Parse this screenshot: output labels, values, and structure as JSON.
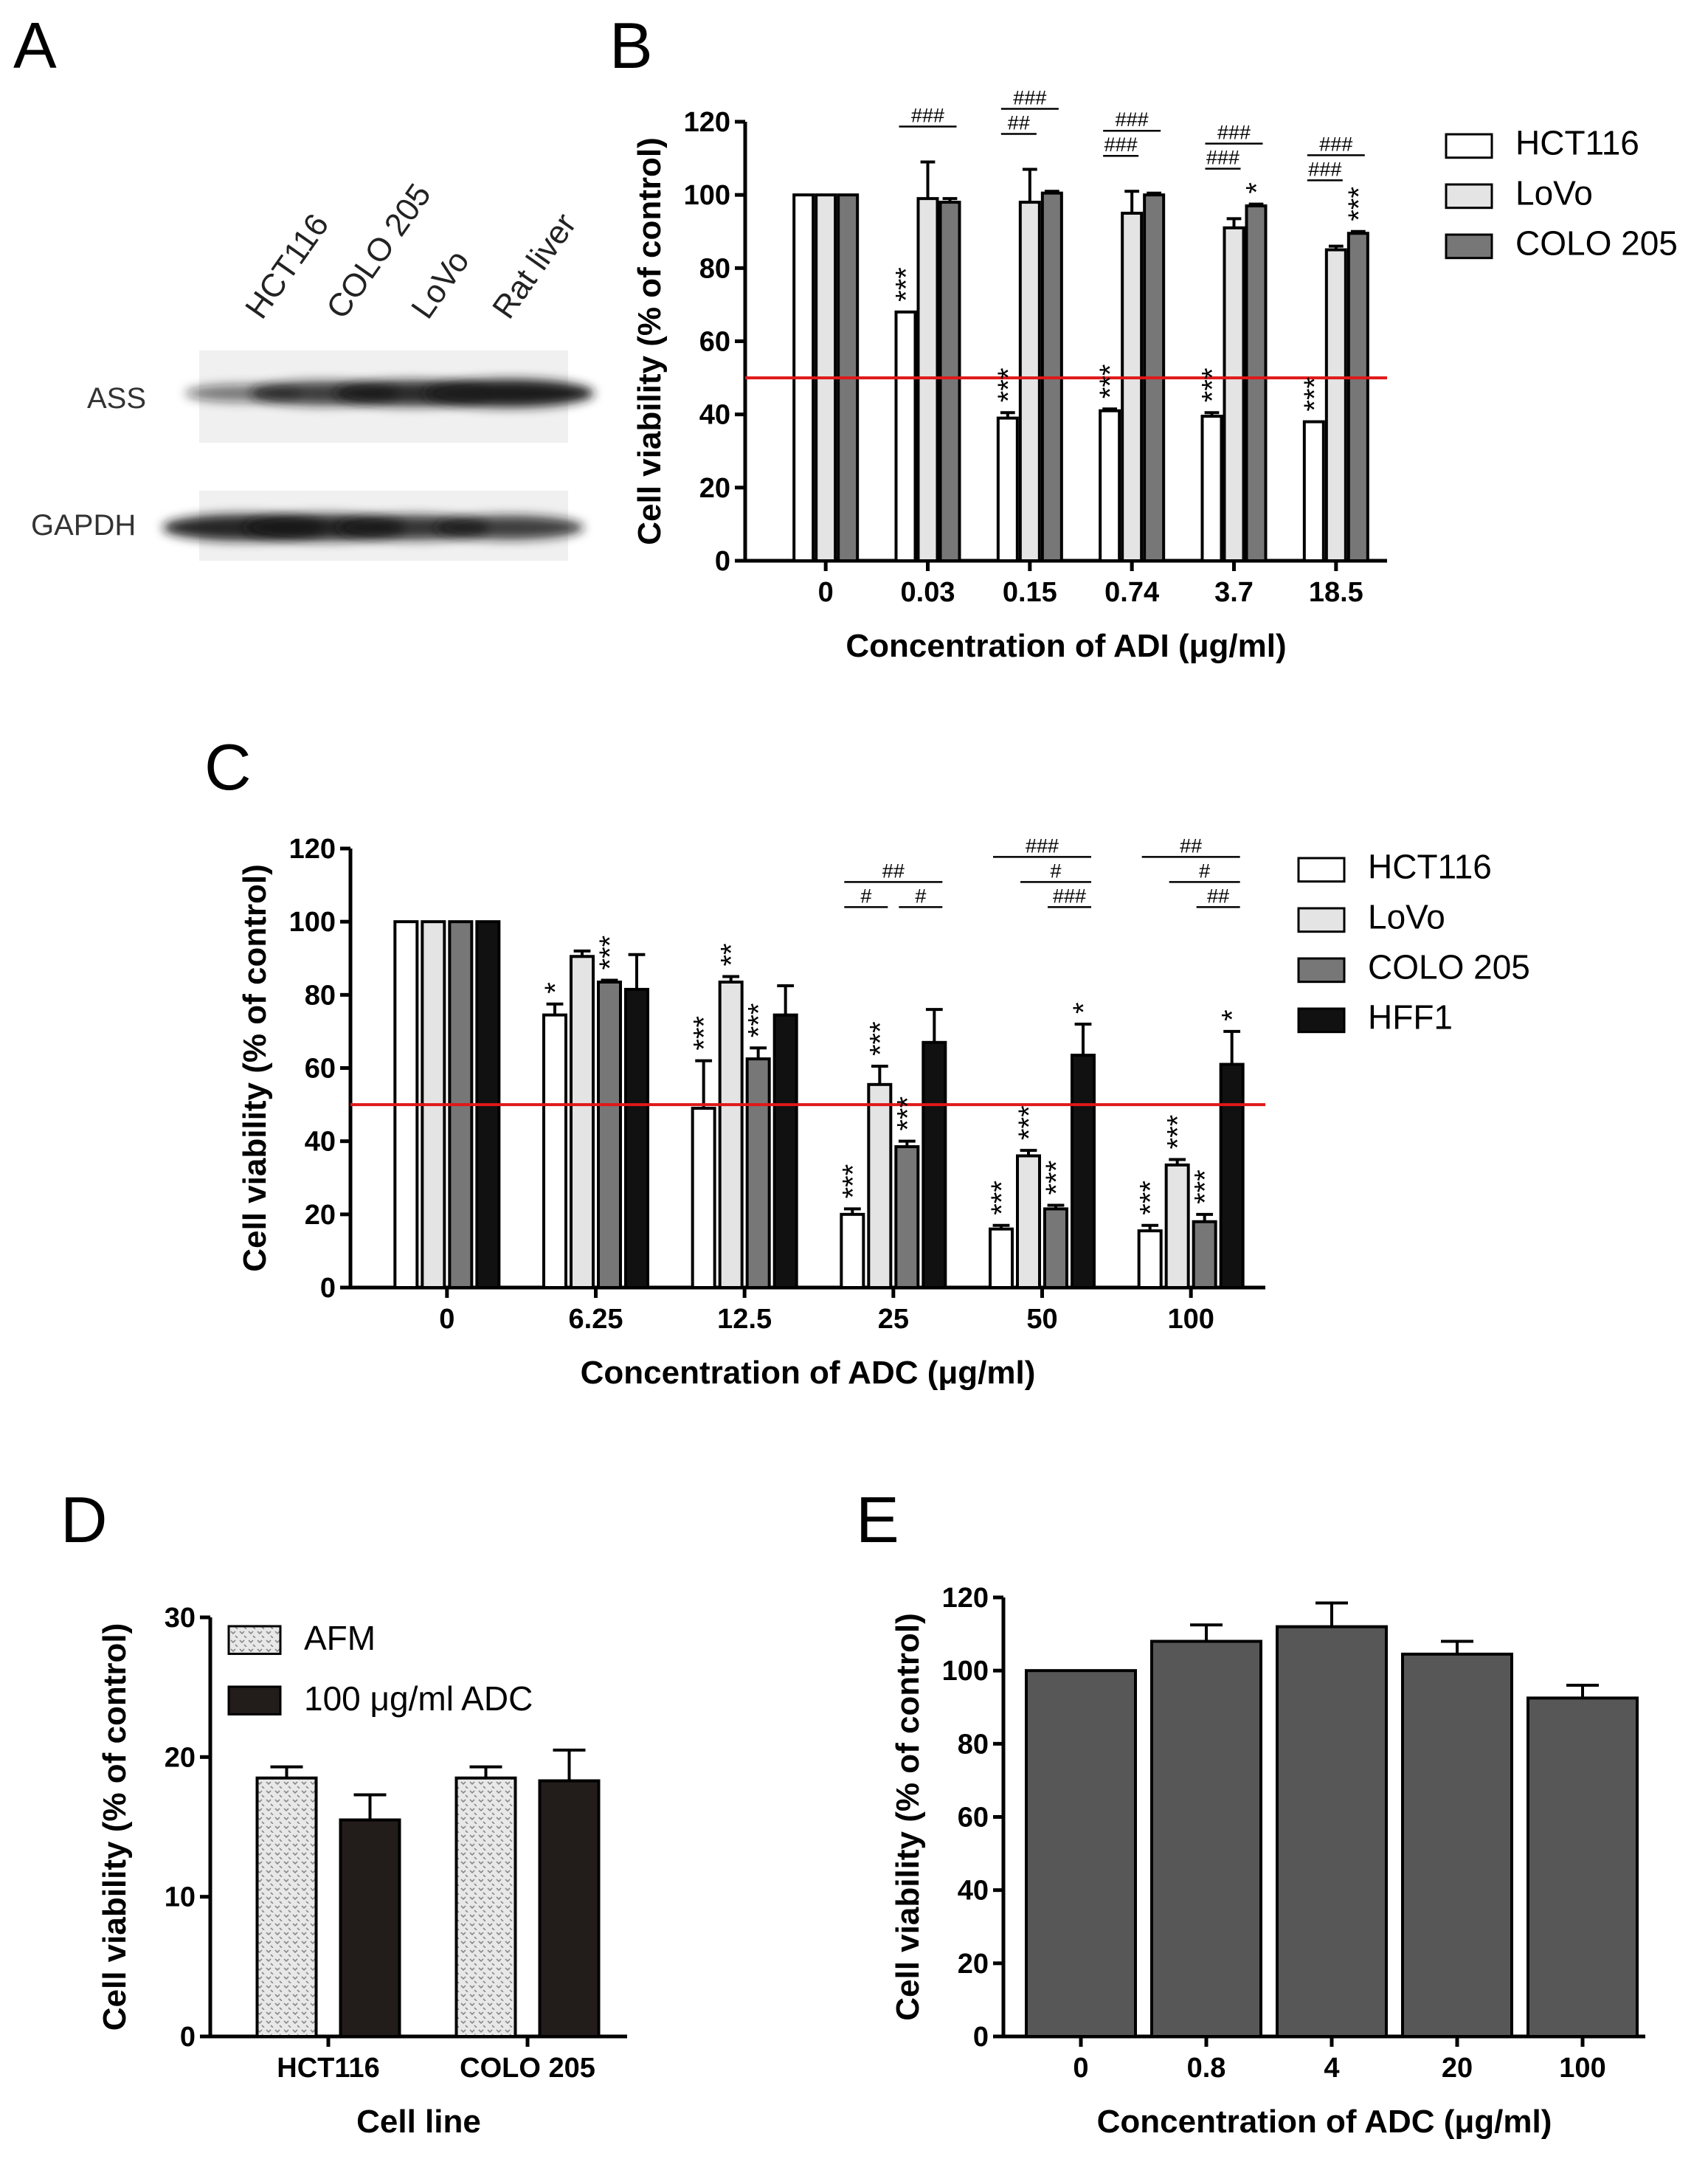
{
  "panels": [
    {
      "letter": "A"
    },
    {
      "letter": "B"
    },
    {
      "letter": "C"
    },
    {
      "letter": "D"
    },
    {
      "letter": "E"
    }
  ],
  "western_blot": {
    "lanes": [
      "HCT116",
      "COLO 205",
      "LoVo",
      "Rat liver"
    ],
    "rows": [
      {
        "label": "ASS",
        "intensities": [
          0.35,
          0.75,
          0.85,
          1.0
        ]
      },
      {
        "label": "GAPDH",
        "intensities": [
          0.9,
          0.9,
          0.8,
          0.75
        ]
      }
    ]
  },
  "chart_data": [
    {
      "id": "B",
      "type": "bar",
      "xlabel": "Concentration of ADI (μg/ml)",
      "ylabel": "Cell viability (% of control)",
      "ylim": [
        0,
        120
      ],
      "yticks": [
        "0",
        "20",
        "40",
        "60",
        "80",
        "100",
        "120"
      ],
      "categories": [
        "0",
        "0.03",
        "0.15",
        "0.74",
        "3.7",
        "18.5"
      ],
      "reference_line": 50,
      "legend_position": "right",
      "series": [
        {
          "name": "HCT116",
          "color": "#ffffff",
          "values": [
            100,
            68,
            39,
            41,
            39.5,
            38
          ],
          "errors": [
            0,
            0,
            1.5,
            0.5,
            1,
            0
          ]
        },
        {
          "name": "LoVo",
          "color": "#e4e4e4",
          "values": [
            100,
            99,
            98,
            95,
            91,
            85
          ],
          "errors": [
            0,
            10,
            9,
            6,
            2.5,
            1
          ]
        },
        {
          "name": "COLO 205",
          "color": "#777777",
          "values": [
            100,
            98,
            100.5,
            100,
            97,
            89.5
          ],
          "errors": [
            0,
            1,
            0.5,
            0.5,
            0.5,
            0.5
          ]
        }
      ],
      "annotations": [
        {
          "category": 1,
          "series": 0,
          "text": "***"
        },
        {
          "category": 2,
          "series": 0,
          "text": "***"
        },
        {
          "category": 3,
          "series": 0,
          "text": "***"
        },
        {
          "category": 4,
          "series": 0,
          "text": "***"
        },
        {
          "category": 5,
          "series": 0,
          "text": "***"
        },
        {
          "category": 4,
          "series": 2,
          "text": "*"
        },
        {
          "category": 5,
          "series": 2,
          "text": "***"
        }
      ],
      "brackets": [
        {
          "category": 1,
          "from": 0,
          "to": 2,
          "level": 0,
          "text": "###"
        },
        {
          "category": 2,
          "from": 0,
          "to": 1,
          "level": 0,
          "text": "##"
        },
        {
          "category": 2,
          "from": 0,
          "to": 2,
          "level": 1,
          "text": "###"
        },
        {
          "category": 3,
          "from": 0,
          "to": 1,
          "level": 0,
          "text": "###"
        },
        {
          "category": 3,
          "from": 0,
          "to": 2,
          "level": 1,
          "text": "###"
        },
        {
          "category": 4,
          "from": 0,
          "to": 1,
          "level": 0,
          "text": "###"
        },
        {
          "category": 4,
          "from": 0,
          "to": 2,
          "level": 1,
          "text": "###"
        },
        {
          "category": 5,
          "from": 0,
          "to": 1,
          "level": 0,
          "text": "###"
        },
        {
          "category": 5,
          "from": 0,
          "to": 2,
          "level": 1,
          "text": "###"
        }
      ]
    },
    {
      "id": "C",
      "type": "bar",
      "xlabel": "Concentration of ADC (μg/ml)",
      "ylabel": "Cell viability (% of control)",
      "ylim": [
        0,
        120
      ],
      "yticks": [
        "0",
        "20",
        "40",
        "60",
        "80",
        "100",
        "120"
      ],
      "categories": [
        "0",
        "6.25",
        "12.5",
        "25",
        "50",
        "100"
      ],
      "reference_line": 50,
      "legend_position": "right",
      "series": [
        {
          "name": "HCT116",
          "color": "#ffffff",
          "values": [
            100,
            74.5,
            49,
            20,
            16,
            15.5
          ],
          "errors": [
            0,
            3,
            13,
            1.5,
            1,
            1.5
          ]
        },
        {
          "name": "LoVo",
          "color": "#e4e4e4",
          "values": [
            100,
            90.5,
            83.5,
            55.5,
            36,
            33.5
          ],
          "errors": [
            0,
            1.5,
            1.5,
            5,
            1.5,
            1.5
          ]
        },
        {
          "name": "COLO 205",
          "color": "#777777",
          "values": [
            100,
            83.5,
            62.5,
            38.5,
            21.5,
            18
          ],
          "errors": [
            0,
            0.5,
            3,
            1.5,
            1,
            2
          ]
        },
        {
          "name": "HFF1",
          "color": "#111111",
          "values": [
            100,
            81.5,
            74.5,
            67,
            63.5,
            61
          ],
          "errors": [
            0,
            9.5,
            8,
            9,
            8.5,
            9
          ]
        }
      ],
      "annotations": [
        {
          "category": 1,
          "series": 0,
          "text": "*"
        },
        {
          "category": 1,
          "series": 2,
          "text": "***"
        },
        {
          "category": 2,
          "series": 0,
          "text": "***"
        },
        {
          "category": 2,
          "series": 1,
          "text": "**"
        },
        {
          "category": 2,
          "series": 2,
          "text": "***"
        },
        {
          "category": 3,
          "series": 0,
          "text": "***"
        },
        {
          "category": 3,
          "series": 1,
          "text": "***"
        },
        {
          "category": 3,
          "series": 2,
          "text": "***"
        },
        {
          "category": 4,
          "series": 0,
          "text": "***"
        },
        {
          "category": 4,
          "series": 1,
          "text": "***"
        },
        {
          "category": 4,
          "series": 2,
          "text": "***"
        },
        {
          "category": 4,
          "series": 3,
          "text": "*"
        },
        {
          "category": 5,
          "series": 0,
          "text": "***"
        },
        {
          "category": 5,
          "series": 1,
          "text": "***"
        },
        {
          "category": 5,
          "series": 2,
          "text": "***"
        },
        {
          "category": 5,
          "series": 3,
          "text": "*"
        }
      ],
      "brackets": [
        {
          "category": 3,
          "from": 0,
          "to": 1,
          "level": 0,
          "text": "#"
        },
        {
          "category": 3,
          "from": 2,
          "to": 3,
          "level": 0,
          "text": "#"
        },
        {
          "category": 3,
          "from": 0,
          "to": 3,
          "level": 1,
          "text": "##"
        },
        {
          "category": 4,
          "from": 2,
          "to": 3,
          "level": 0,
          "text": "###"
        },
        {
          "category": 4,
          "from": 1,
          "to": 3,
          "level": 1,
          "text": "#"
        },
        {
          "category": 4,
          "from": 0,
          "to": 3,
          "level": 2,
          "text": "###"
        },
        {
          "category": 5,
          "from": 2,
          "to": 3,
          "level": 0,
          "text": "##"
        },
        {
          "category": 5,
          "from": 1,
          "to": 3,
          "level": 1,
          "text": "#"
        },
        {
          "category": 5,
          "from": 0,
          "to": 3,
          "level": 2,
          "text": "##"
        }
      ]
    },
    {
      "id": "D",
      "type": "bar",
      "xlabel": "Cell line",
      "ylabel": "Cell viability (% of control)",
      "ylim": [
        0,
        30
      ],
      "yticks": [
        "0",
        "10",
        "20",
        "30"
      ],
      "categories": [
        "HCT116",
        "COLO 205"
      ],
      "legend_position": "top-left",
      "series": [
        {
          "name": "AFM",
          "color": "#e8e8e8",
          "pattern": "dotted",
          "values": [
            18.5,
            18.5
          ],
          "errors": [
            0.8,
            0.8
          ]
        },
        {
          "name": "100 μg/ml ADC",
          "color": "#221c1a",
          "values": [
            15.5,
            18.3
          ],
          "errors": [
            1.8,
            2.2
          ]
        }
      ]
    },
    {
      "id": "E",
      "type": "bar",
      "xlabel": "Concentration of ADC (μg/ml)",
      "ylabel": "Cell viability (% of control)",
      "ylim": [
        0,
        120
      ],
      "yticks": [
        "0",
        "20",
        "40",
        "60",
        "80",
        "100",
        "120"
      ],
      "categories": [
        "0",
        "0.8",
        "4",
        "20",
        "100"
      ],
      "series": [
        {
          "color": "#575757",
          "values": [
            100,
            108,
            112,
            104.5,
            92.5
          ],
          "errors": [
            0,
            4.5,
            6.5,
            3.5,
            3.5
          ]
        }
      ]
    }
  ]
}
